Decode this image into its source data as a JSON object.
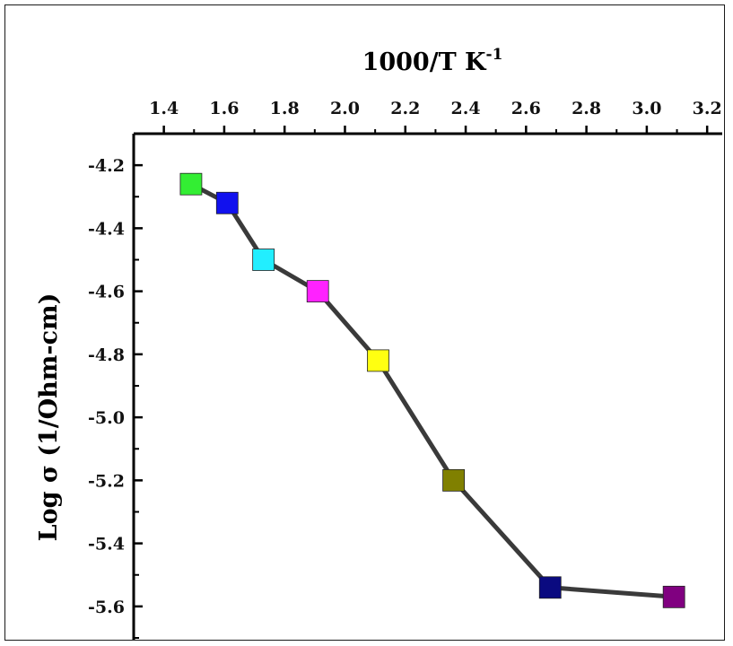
{
  "chart_data": {
    "type": "line",
    "xlabel": "1000/T K",
    "xlabel_superscript": "-1",
    "ylabel": "Log σ (1/Ohm-cm)",
    "x_axis_position": "top",
    "xlim": [
      1.3,
      3.25
    ],
    "ylim": [
      -5.7,
      -4.1
    ],
    "x_ticks": [
      1.4,
      1.6,
      1.8,
      2.0,
      2.2,
      2.4,
      2.6,
      2.8,
      3.0,
      3.2
    ],
    "x_tick_labels": [
      "1.4",
      "1.6",
      "1.8",
      "2.0",
      "2.2",
      "2.4",
      "2.6",
      "2.8",
      "3.0",
      "3.2"
    ],
    "y_ticks": [
      -4.2,
      -4.4,
      -4.6,
      -4.8,
      -5.0,
      -5.2,
      -5.4,
      -5.6
    ],
    "y_tick_labels": [
      "-4.2",
      "-4.4",
      "-4.6",
      "-4.8",
      "-5.0",
      "-5.2",
      "-5.4",
      "-5.6"
    ],
    "grid": false,
    "line_color": "#3a3a3a",
    "points": [
      {
        "x": 1.49,
        "y": -4.26,
        "color": "#33ee33"
      },
      {
        "x": 1.61,
        "y": -4.32,
        "color": "#1111ee"
      },
      {
        "x": 1.73,
        "y": -4.5,
        "color": "#22eeff"
      },
      {
        "x": 1.91,
        "y": -4.6,
        "color": "#ff22ff"
      },
      {
        "x": 2.11,
        "y": -4.82,
        "color": "#ffff11"
      },
      {
        "x": 2.36,
        "y": -5.2,
        "color": "#808000"
      },
      {
        "x": 2.68,
        "y": -5.54,
        "color": "#0a0a80"
      },
      {
        "x": 3.09,
        "y": -5.57,
        "color": "#800080"
      }
    ]
  }
}
